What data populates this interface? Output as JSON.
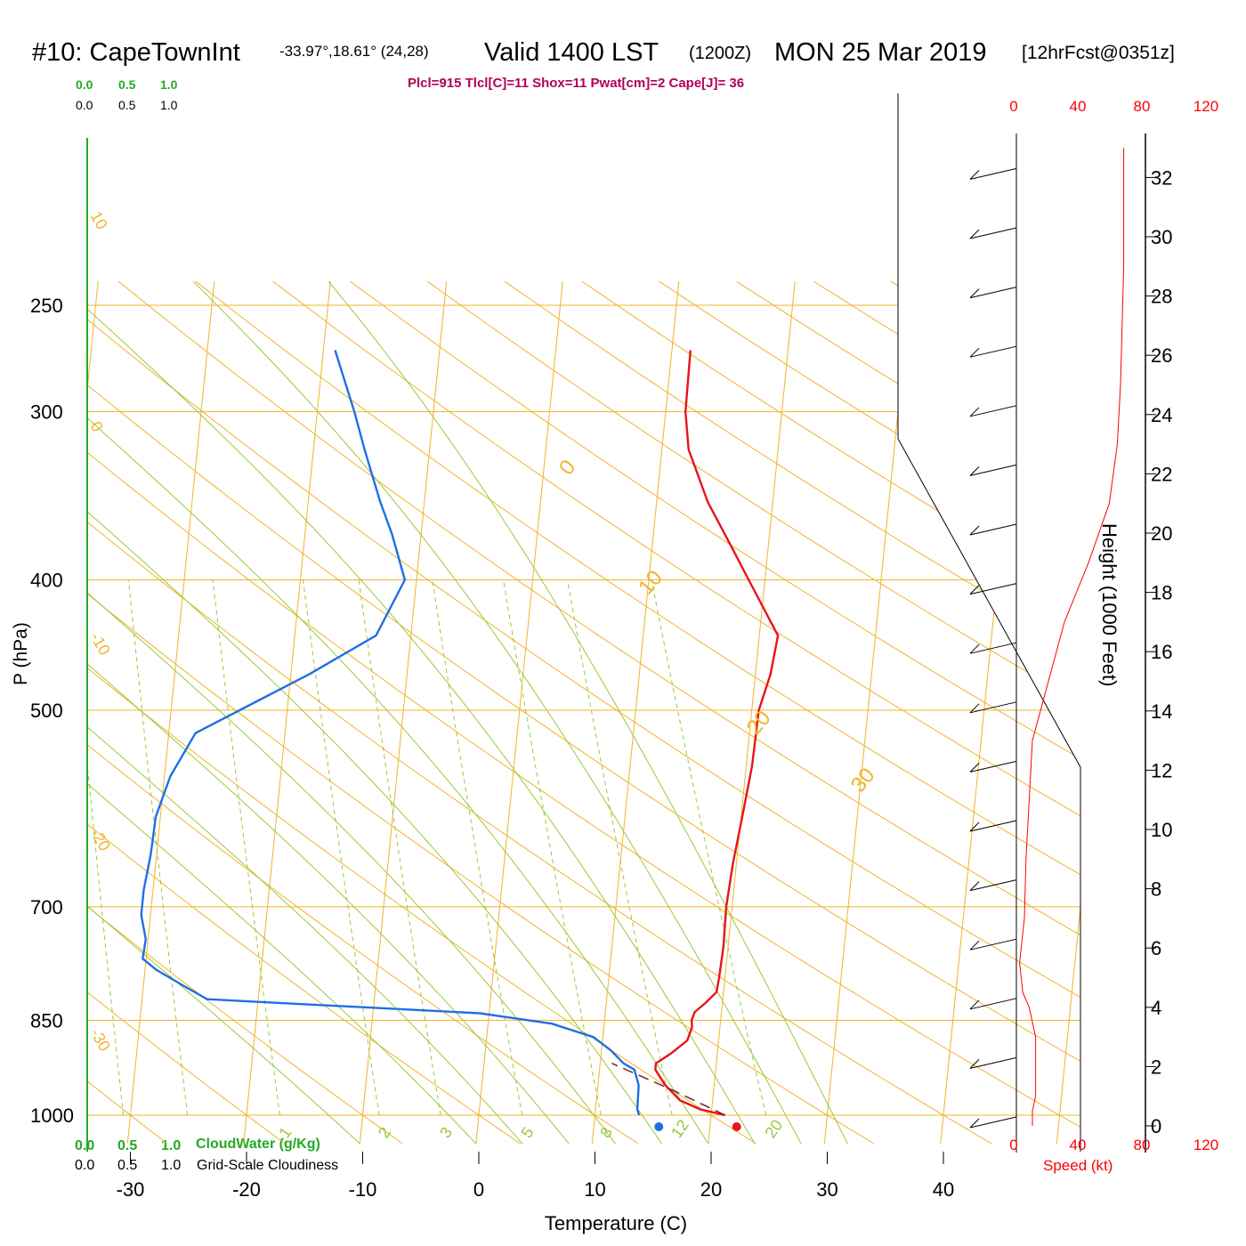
{
  "header": {
    "station": "#10: CapeTownInt",
    "coords": "-33.97°,18.61° (24,28)",
    "valid": "Valid 1400 LST",
    "zulu": "(1200Z)",
    "date": "MON 25 Mar 2019",
    "forecast": "[12hrFcst@0351z]",
    "indices": "Plcl=915 Tlcl[C]=11 Shox=11 Pwat[cm]=2 Cape[J]= 36"
  },
  "colors": {
    "temperature": "#e8141a",
    "dewpoint": "#1f6fe6",
    "isotherm": "#f0b429",
    "dry_adiabat": "#f0b429",
    "moist_adiabat": "#9cc83a",
    "mixing_ratio": "#9cc83a",
    "cloud_scale": "#22aa22",
    "indices": "#b0005a",
    "parcel": "#7a1b3a",
    "speed": "#ff0000"
  },
  "cloud_scales": {
    "cloudwater_ticks": [
      "0.0",
      "0.5",
      "1.0"
    ],
    "cloudiness_ticks": [
      "0.0",
      "0.5",
      "1.0"
    ],
    "cloudwater_label": "CloudWater (g/Kg)",
    "cloudiness_label": "Grid-Scale Cloudiness"
  },
  "axes": {
    "y_label": "P (hPa)",
    "x_label": "Temperature (C)",
    "height_label": "Height (1000 Feet)",
    "speed_label": "Speed (kt)",
    "pressure_ticks": [
      "250",
      "300",
      "400",
      "500",
      "700",
      "850",
      "1000"
    ],
    "temperature_ticks": [
      "-30",
      "-20",
      "-10",
      "0",
      "10",
      "20",
      "30",
      "40"
    ],
    "height_ticks": [
      "0",
      "2",
      "4",
      "6",
      "8",
      "10",
      "12",
      "14",
      "16",
      "18",
      "20",
      "22",
      "24",
      "26",
      "28",
      "30",
      "32"
    ],
    "speed_ticks": [
      "0",
      "40",
      "80",
      "120"
    ]
  },
  "chart_data": {
    "type": "line",
    "title": "#10: CapeTownInt Valid 1400 LST (1200Z) MON 25 Mar 2019",
    "xlabel": "Temperature (C)",
    "ylabel": "P (hPa)",
    "xlim": [
      -30,
      40
    ],
    "ylim": [
      1000,
      250
    ],
    "y_scale": "log",
    "skewed": true,
    "grid": true,
    "series": [
      {
        "name": "temperature",
        "points": [
          {
            "p": 1000,
            "t": 21.2
          },
          {
            "p": 990,
            "t": 19.0
          },
          {
            "p": 975,
            "t": 17.2
          },
          {
            "p": 950,
            "t": 15.8
          },
          {
            "p": 925,
            "t": 14.8
          },
          {
            "p": 915,
            "t": 14.8
          },
          {
            "p": 900,
            "t": 16.0
          },
          {
            "p": 880,
            "t": 17.3
          },
          {
            "p": 860,
            "t": 17.6
          },
          {
            "p": 850,
            "t": 17.5
          },
          {
            "p": 838,
            "t": 17.7
          },
          {
            "p": 826,
            "t": 18.5
          },
          {
            "p": 810,
            "t": 19.4
          },
          {
            "p": 790,
            "t": 19.5
          },
          {
            "p": 750,
            "t": 19.6
          },
          {
            "p": 700,
            "t": 19.5
          },
          {
            "p": 650,
            "t": 19.7
          },
          {
            "p": 600,
            "t": 20.1
          },
          {
            "p": 550,
            "t": 20.5
          },
          {
            "p": 500,
            "t": 20.6
          },
          {
            "p": 470,
            "t": 21.3
          },
          {
            "p": 440,
            "t": 21.6
          },
          {
            "p": 400,
            "t": 18.6
          },
          {
            "p": 380,
            "t": 17.0
          },
          {
            "p": 350,
            "t": 14.4
          },
          {
            "p": 320,
            "t": 12.3
          },
          {
            "p": 300,
            "t": 11.7
          },
          {
            "p": 270,
            "t": 11.6
          }
        ]
      },
      {
        "name": "dewpoint",
        "points": [
          {
            "p": 1000,
            "t": 13.8
          },
          {
            "p": 990,
            "t": 13.6
          },
          {
            "p": 950,
            "t": 13.5
          },
          {
            "p": 925,
            "t": 13.0
          },
          {
            "p": 915,
            "t": 12.0
          },
          {
            "p": 895,
            "t": 10.8
          },
          {
            "p": 875,
            "t": 9.2
          },
          {
            "p": 855,
            "t": 5.5
          },
          {
            "p": 840,
            "t": -0.8
          },
          {
            "p": 820,
            "t": -24.4
          },
          {
            "p": 800,
            "t": -26.7
          },
          {
            "p": 780,
            "t": -29.0
          },
          {
            "p": 765,
            "t": -30.3
          },
          {
            "p": 740,
            "t": -30.2
          },
          {
            "p": 710,
            "t": -30.8
          },
          {
            "p": 680,
            "t": -30.8
          },
          {
            "p": 640,
            "t": -30.5
          },
          {
            "p": 600,
            "t": -30.4
          },
          {
            "p": 560,
            "t": -29.5
          },
          {
            "p": 520,
            "t": -27.7
          },
          {
            "p": 500,
            "t": -24.1
          },
          {
            "p": 470,
            "t": -18.4
          },
          {
            "p": 440,
            "t": -13.0
          },
          {
            "p": 400,
            "t": -11.0
          },
          {
            "p": 370,
            "t": -12.5
          },
          {
            "p": 350,
            "t": -13.8
          },
          {
            "p": 320,
            "t": -15.6
          },
          {
            "p": 300,
            "t": -16.8
          },
          {
            "p": 270,
            "t": -19.0
          }
        ]
      },
      {
        "name": "parcel",
        "points": [
          {
            "p": 1000,
            "t": 21.2
          },
          {
            "p": 960,
            "t": 16.7
          },
          {
            "p": 915,
            "t": 11.0
          }
        ]
      }
    ],
    "surface_markers": [
      {
        "name": "surface dewpoint",
        "t": 15.5,
        "color": "#1f6fe6"
      },
      {
        "name": "surface temperature",
        "t": 22.2,
        "color": "#e8141a"
      }
    ],
    "isotherm_labels": [
      "0",
      "10",
      "20",
      "30",
      "-10",
      "-20",
      "-30"
    ],
    "mixing_ratio_labels": [
      "1",
      "2",
      "3",
      "5",
      "8",
      "12",
      "20"
    ],
    "wind_profile": [
      {
        "height_kft": 0.0,
        "speed_kt": 10
      },
      {
        "height_kft": 0.5,
        "speed_kt": 10
      },
      {
        "height_kft": 1.0,
        "speed_kt": 12
      },
      {
        "height_kft": 2.0,
        "speed_kt": 12
      },
      {
        "height_kft": 3.0,
        "speed_kt": 12
      },
      {
        "height_kft": 4.0,
        "speed_kt": 8
      },
      {
        "height_kft": 4.5,
        "speed_kt": 4
      },
      {
        "height_kft": 5.5,
        "speed_kt": 2
      },
      {
        "height_kft": 7.0,
        "speed_kt": 5
      },
      {
        "height_kft": 9.0,
        "speed_kt": 6
      },
      {
        "height_kft": 11.0,
        "speed_kt": 8
      },
      {
        "height_kft": 13.0,
        "speed_kt": 10
      },
      {
        "height_kft": 15.0,
        "speed_kt": 20
      },
      {
        "height_kft": 17.0,
        "speed_kt": 30
      },
      {
        "height_kft": 19.0,
        "speed_kt": 45
      },
      {
        "height_kft": 21.0,
        "speed_kt": 58
      },
      {
        "height_kft": 23.0,
        "speed_kt": 63
      },
      {
        "height_kft": 25.0,
        "speed_kt": 65
      },
      {
        "height_kft": 27.0,
        "speed_kt": 66
      },
      {
        "height_kft": 29.0,
        "speed_kt": 67
      },
      {
        "height_kft": 31.0,
        "speed_kt": 67
      },
      {
        "height_kft": 33.0,
        "speed_kt": 67
      }
    ]
  }
}
